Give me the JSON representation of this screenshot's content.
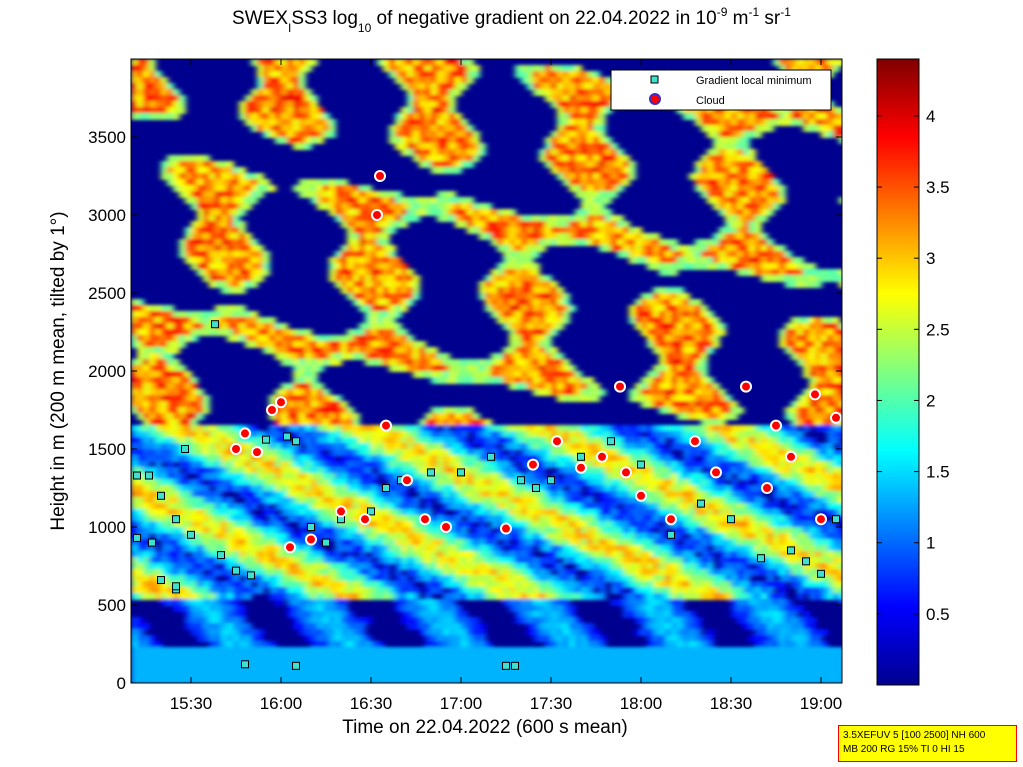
{
  "chart_data": {
    "type": "heatmap",
    "title": {
      "p1": "SWEX",
      "sub1": "I",
      "p2": "SS3 log",
      "sub2": "10",
      "p3": " of negative gradient on 22.04.2022 in 10",
      "sup1": "-9",
      "p4": " m",
      "sup2": "-1",
      "p5": " sr",
      "sup3": "-1"
    },
    "xlabel": "Time on 22.04.2022 (600 s mean)",
    "ylabel": "Height in m (200 m mean, tilted by 1°)",
    "x_ticks": [
      "15:30",
      "16:00",
      "16:30",
      "17:00",
      "17:30",
      "18:00",
      "18:30",
      "19:00"
    ],
    "y_ticks": [
      "0",
      "500",
      "1000",
      "1500",
      "2000",
      "2500",
      "3000",
      "3500"
    ],
    "colorbar_ticks": [
      "0.5",
      "1",
      "1.5",
      "2",
      "2.5",
      "3",
      "3.5",
      "4"
    ],
    "colorbar_range": [
      0,
      4.4
    ],
    "colormap": "jet",
    "legend": {
      "position": "top-right",
      "entries": [
        {
          "label": "Gradient local minimum",
          "marker": "square",
          "color": "#40e0d0"
        },
        {
          "label": "Cloud",
          "marker": "circle",
          "color": "#ff0000"
        }
      ]
    },
    "series": [
      {
        "name": "Gradient local minimum",
        "points": [
          [
            "15:12",
            1330
          ],
          [
            "15:16",
            1330
          ],
          [
            "15:20",
            1200
          ],
          [
            "15:25",
            1050
          ],
          [
            "15:30",
            950
          ],
          [
            "15:12",
            930
          ],
          [
            "15:17",
            900
          ],
          [
            "15:20",
            660
          ],
          [
            "15:25",
            600
          ],
          [
            "15:28",
            1500
          ],
          [
            "15:40",
            820
          ],
          [
            "15:45",
            720
          ],
          [
            "15:50",
            690
          ],
          [
            "15:55",
            1560
          ],
          [
            "16:02",
            1580
          ],
          [
            "16:05",
            1550
          ],
          [
            "16:10",
            1000
          ],
          [
            "16:15",
            900
          ],
          [
            "16:20",
            1050
          ],
          [
            "16:30",
            1100
          ],
          [
            "16:35",
            1250
          ],
          [
            "16:40",
            1300
          ],
          [
            "16:50",
            1350
          ],
          [
            "17:00",
            1350
          ],
          [
            "17:10",
            1450
          ],
          [
            "17:20",
            1300
          ],
          [
            "17:25",
            1250
          ],
          [
            "17:30",
            1300
          ],
          [
            "17:40",
            1450
          ],
          [
            "17:50",
            1550
          ],
          [
            "18:00",
            1400
          ],
          [
            "18:10",
            950
          ],
          [
            "18:20",
            1150
          ],
          [
            "18:30",
            1050
          ],
          [
            "18:40",
            800
          ],
          [
            "18:50",
            850
          ],
          [
            "19:00",
            700
          ],
          [
            "19:05",
            1050
          ],
          [
            "15:48",
            120
          ],
          [
            "16:05",
            110
          ],
          [
            "17:15",
            110
          ],
          [
            "17:18",
            110
          ],
          [
            "15:38",
            2300
          ],
          [
            "15:25",
            620
          ],
          [
            "18:55",
            780
          ]
        ]
      },
      {
        "name": "Cloud",
        "points": [
          [
            "15:45",
            1500
          ],
          [
            "15:48",
            1600
          ],
          [
            "15:52",
            1480
          ],
          [
            "15:57",
            1750
          ],
          [
            "16:00",
            1800
          ],
          [
            "16:03",
            870
          ],
          [
            "16:10",
            920
          ],
          [
            "16:20",
            1100
          ],
          [
            "16:28",
            1050
          ],
          [
            "16:32",
            3000
          ],
          [
            "16:33",
            3250
          ],
          [
            "16:35",
            1650
          ],
          [
            "16:42",
            1300
          ],
          [
            "16:48",
            1050
          ],
          [
            "16:55",
            1000
          ],
          [
            "17:15",
            990
          ],
          [
            "17:24",
            1400
          ],
          [
            "17:32",
            1550
          ],
          [
            "17:40",
            1380
          ],
          [
            "17:47",
            1450
          ],
          [
            "17:53",
            1900
          ],
          [
            "17:55",
            1350
          ],
          [
            "18:00",
            1200
          ],
          [
            "18:10",
            1050
          ],
          [
            "18:18",
            1550
          ],
          [
            "18:25",
            1350
          ],
          [
            "18:35",
            1900
          ],
          [
            "18:42",
            1250
          ],
          [
            "18:45",
            1650
          ],
          [
            "18:50",
            1450
          ],
          [
            "18:58",
            1850
          ],
          [
            "19:00",
            1050
          ],
          [
            "19:05",
            1700
          ]
        ]
      }
    ]
  },
  "info_box": {
    "line1": "3.5XEFUV 5 [100 2500] NH 600",
    "line2": "MB 200 RG 15% TI 0 HI 15"
  }
}
